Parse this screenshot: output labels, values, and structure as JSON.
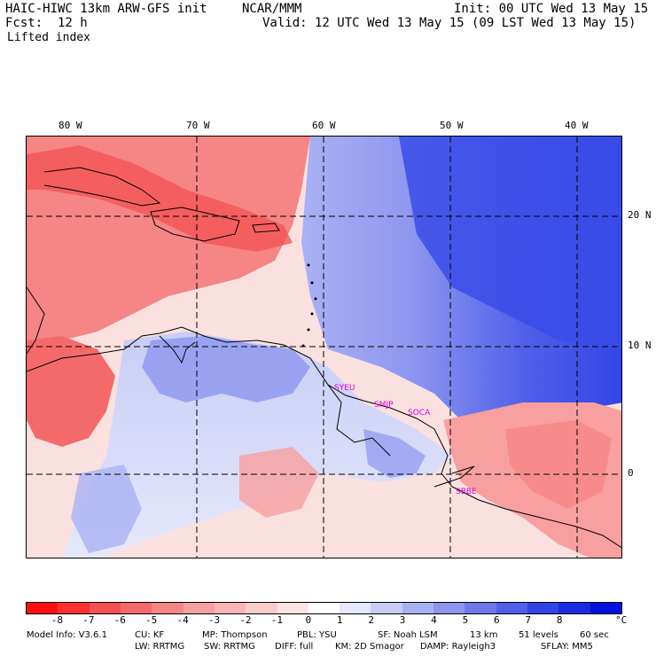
{
  "header": {
    "model_title": "HAIC-HIWC 13km ARW-GFS init",
    "org": "NCAR/MMM",
    "init": "Init: 00 UTC Wed 13 May 15",
    "fcst_label": "Fcst:",
    "fcst_value": "12 h",
    "valid": "Valid: 12 UTC Wed 13 May 15 (09 LST Wed 13 May 15)",
    "field": "Lifted index"
  },
  "map": {
    "lon_labels": [
      "80 W",
      "70 W",
      "60 W",
      "50 W",
      "40 W"
    ],
    "lat_labels": [
      "20 N",
      "10 N",
      "0"
    ],
    "stations": [
      "SYEU",
      "SMJP",
      "SOCA",
      "SBBE"
    ],
    "colors": {
      "ocean_blue": "#4a5ef0",
      "deep_blue": "#2c3ee8",
      "pale_blue": "#c6ccf6",
      "land_red": "#f46a6a",
      "pale_red": "#f9c8c8",
      "contour": "#7a0000",
      "station": "#d800d8"
    }
  },
  "legend": {
    "labels": [
      "-8",
      "-7",
      "-6",
      "-5",
      "-4",
      "-3",
      "-2",
      "-1",
      "0",
      "1",
      "2",
      "3",
      "4",
      "5",
      "6",
      "7",
      "8"
    ],
    "unit": "°C",
    "colors": [
      "#ff1010",
      "#ff3030",
      "#f45050",
      "#f46a6a",
      "#f68686",
      "#f8a0a0",
      "#f9b6b6",
      "#fbcccc",
      "#fde4e4",
      "#ffffff",
      "#e6e8fb",
      "#c8cdf6",
      "#aab1f3",
      "#8c96ef",
      "#6e7aec",
      "#505fe9",
      "#3244e6",
      "#1a2ae2",
      "#0010dd"
    ]
  },
  "footer": {
    "line1": [
      "Model Info: V3.6.1",
      "CU: KF",
      "MP: Thompson",
      "PBL: YSU",
      "SF: Noah LSM",
      "13 km",
      "51 levels",
      "60 sec"
    ],
    "line2": [
      "LW: RRTMG",
      "SW: RRTMG",
      "DIFF: full",
      "KM: 2D Smagor",
      "DAMP: Rayleigh3",
      "SFLAY: MM5"
    ]
  }
}
